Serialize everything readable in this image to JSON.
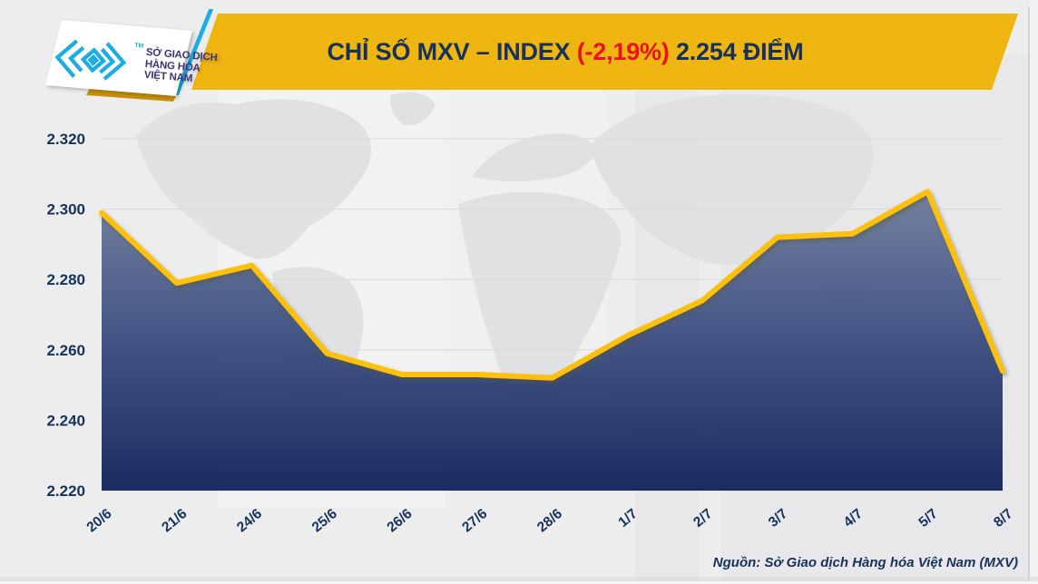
{
  "header": {
    "logo": {
      "org": {
        "line1": "SỞ GIAO DỊCH",
        "line2": "HÀNG HÓA",
        "line3": "VIỆT NAM"
      },
      "trademark": "TM"
    },
    "banner": {
      "title_main": "CHỈ SỐ MXV – INDEX ",
      "title_change": "(-2,19%)",
      "title_value": " 2.254 ĐIỂM"
    }
  },
  "chart_data": {
    "type": "area",
    "title": "CHỈ SỐ MXV – INDEX (-2,19%) 2.254 ĐIỂM",
    "categories": [
      "20/6",
      "21/6",
      "24/6",
      "25/6",
      "26/6",
      "27/6",
      "28/6",
      "1/7",
      "2/7",
      "3/7",
      "4/7",
      "5/7",
      "8/7"
    ],
    "values": [
      2299,
      2279,
      2284,
      2259,
      2253,
      2253,
      2252,
      2264,
      2274,
      2292,
      2293,
      2305,
      2254
    ],
    "unit": "điểm",
    "ylim": [
      2220,
      2320
    ],
    "yticks": [
      2320,
      2300,
      2280,
      2260,
      2240,
      2220
    ],
    "ytick_labels": [
      "2.320",
      "2.300",
      "2.280",
      "2.260",
      "2.240",
      "2.220"
    ],
    "xlabel": "",
    "ylabel": "",
    "grid": true,
    "legend": "none",
    "line_color": "#FCC00D",
    "area_gradient_top": "#75819E",
    "area_gradient_mid": "#3E5183",
    "area_gradient_bottom": "#14255B",
    "grid_color": "#D9D9DC",
    "label_color": "#1B3764"
  },
  "footer": {
    "source": "Nguồn: Sở Giao dịch Hàng hóa Việt Nam (MXV)"
  },
  "colors": {
    "banner_gold": "#EFB511",
    "title_navy": "#16325C",
    "change_red": "#E8131D",
    "brand_cyan": "#1CADE4",
    "logo_text": "#3F3377"
  }
}
